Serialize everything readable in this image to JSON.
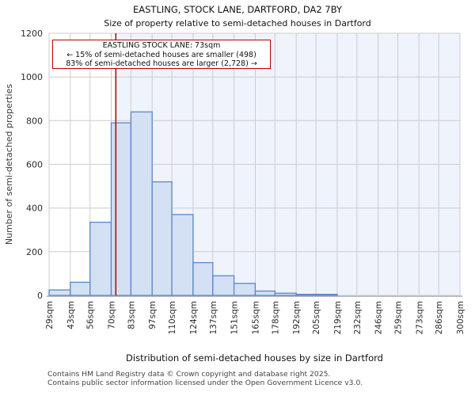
{
  "title": "EASTLING, STOCK LANE, DARTFORD, DA2 7BY",
  "subtitle": "Size of property relative to semi-detached houses in Dartford",
  "annotation": {
    "line1": "EASTLING STOCK LANE: 73sqm",
    "line2": "← 15% of semi-detached houses are smaller (498)",
    "line3": "83% of semi-detached houses are larger (2,728) →"
  },
  "footer": {
    "line1": "Contains HM Land Registry data © Crown copyright and database right 2025.",
    "line2": "Contains public sector information licensed under the Open Government Licence v3.0."
  },
  "chart_data": {
    "type": "bar",
    "title": "EASTLING, STOCK LANE, DARTFORD, DA2 7BY",
    "subtitle": "Size of property relative to semi-detached houses in Dartford",
    "xlabel": "Distribution of semi-detached houses by size in Dartford",
    "ylabel": "Number of semi-detached properties",
    "bin_edges_sqm": [
      29,
      43,
      56,
      70,
      83,
      97,
      110,
      124,
      137,
      151,
      165,
      178,
      192,
      205,
      219,
      232,
      246,
      259,
      273,
      286,
      300
    ],
    "x_tick_labels": [
      "29sqm",
      "43sqm",
      "56sqm",
      "70sqm",
      "83sqm",
      "97sqm",
      "110sqm",
      "124sqm",
      "137sqm",
      "151sqm",
      "165sqm",
      "178sqm",
      "192sqm",
      "205sqm",
      "219sqm",
      "232sqm",
      "246sqm",
      "259sqm",
      "273sqm",
      "286sqm",
      "300sqm"
    ],
    "counts": [
      25,
      60,
      335,
      790,
      840,
      520,
      370,
      150,
      90,
      55,
      20,
      10,
      5,
      5,
      0,
      0,
      0,
      0,
      0,
      0
    ],
    "y_ticks": [
      0,
      200,
      400,
      600,
      800,
      1000,
      1200
    ],
    "ylim": [
      0,
      1200
    ],
    "xlim_sqm": [
      29,
      300
    ],
    "grid": true,
    "legend": false,
    "marker": {
      "value_sqm": 73,
      "label": "EASTLING STOCK LANE: 73sqm",
      "smaller_pct": 15,
      "smaller_count": 498,
      "larger_pct": 83,
      "larger_count": 2728
    },
    "colors": {
      "bar_fill": "#d4e0f3",
      "bar_stroke": "#5b87c5",
      "marker_line": "#aa1111",
      "larger_region_shade": "#eff3fc",
      "grid": "#cccccc",
      "axis_line": "#b9bdc4",
      "annotation_border": "#bb0000",
      "tick_text": "#2b2b2b"
    }
  }
}
